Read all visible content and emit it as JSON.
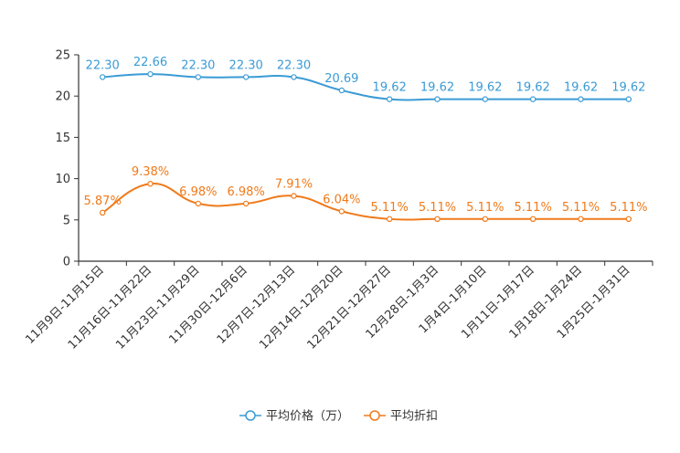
{
  "chart_data": {
    "type": "line",
    "title": "",
    "xlabel": "",
    "ylabel": "",
    "ylim": [
      0,
      25
    ],
    "yticks": [
      0,
      5,
      10,
      15,
      20,
      25
    ],
    "grid": false,
    "legend_position": "bottom-center",
    "categories": [
      "11月9日-11月15日",
      "11月16日-11月22日",
      "11月23日-11月29日",
      "11月30日-12月6日",
      "12月7日-12月13日",
      "12月14日-12月20日",
      "12月21日-12月27日",
      "12月28日-1月3日",
      "1月4日-1月10日",
      "1月11日-1月17日",
      "1月18日-1月24日",
      "1月25日-1月31日"
    ],
    "series": [
      {
        "name": "平均价格（万）",
        "color": "#3a9bd5",
        "values": [
          22.3,
          22.66,
          22.3,
          22.3,
          22.3,
          20.69,
          19.62,
          19.62,
          19.62,
          19.62,
          19.62,
          19.62
        ],
        "labels": [
          "22.30",
          "22.66",
          "22.30",
          "22.30",
          "22.30",
          "20.69",
          "19.62",
          "19.62",
          "19.62",
          "19.62",
          "19.62",
          "19.62"
        ]
      },
      {
        "name": "平均折扣",
        "color": "#f07a1a",
        "values": [
          5.87,
          9.38,
          6.98,
          6.98,
          7.91,
          6.04,
          5.11,
          5.11,
          5.11,
          5.11,
          5.11,
          5.11
        ],
        "labels": [
          "5.87%",
          "9.38%",
          "6.98%",
          "6.98%",
          "7.91%",
          "6.04%",
          "5.11%",
          "5.11%",
          "5.11%",
          "5.11%",
          "5.11%",
          "5.11%"
        ]
      }
    ]
  }
}
